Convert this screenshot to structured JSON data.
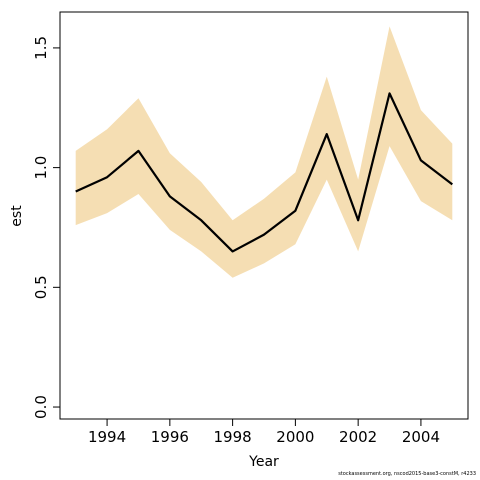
{
  "chart_data": {
    "type": "area",
    "x": [
      1993,
      1994,
      1995,
      1996,
      1997,
      1998,
      1999,
      2000,
      2001,
      2002,
      2003,
      2004,
      2005
    ],
    "series": [
      {
        "values": [
          0.9,
          0.96,
          1.07,
          0.88,
          0.78,
          0.65,
          0.72,
          0.82,
          1.14,
          0.78,
          1.31,
          1.03,
          0.93
        ],
        "lower": [
          0.76,
          0.81,
          0.89,
          0.74,
          0.65,
          0.54,
          0.6,
          0.68,
          0.95,
          0.65,
          1.09,
          0.86,
          0.78
        ],
        "upper": [
          1.07,
          1.16,
          1.29,
          1.06,
          0.94,
          0.78,
          0.87,
          0.98,
          1.38,
          0.95,
          1.59,
          1.24,
          1.1
        ]
      }
    ],
    "xlabel": "Year",
    "ylabel": "est",
    "xticks": [
      1994,
      1996,
      1998,
      2000,
      2002,
      2004
    ],
    "xtick_labels": [
      "1994",
      "1996",
      "1998",
      "2000",
      "2002",
      "2004"
    ],
    "yticks": [
      0.0,
      0.5,
      1.0,
      1.5
    ],
    "ytick_labels": [
      "0.0",
      "0.5",
      "1.0",
      "1.5"
    ],
    "xlim": [
      1992.5,
      2005.5
    ],
    "ylim": [
      -0.05,
      1.65
    ],
    "grid": false,
    "colors": {
      "band": "#F5DEB3",
      "line": "#000000"
    }
  },
  "footer": "stockassessment.org, nscod2015-base3-constM, r4233"
}
